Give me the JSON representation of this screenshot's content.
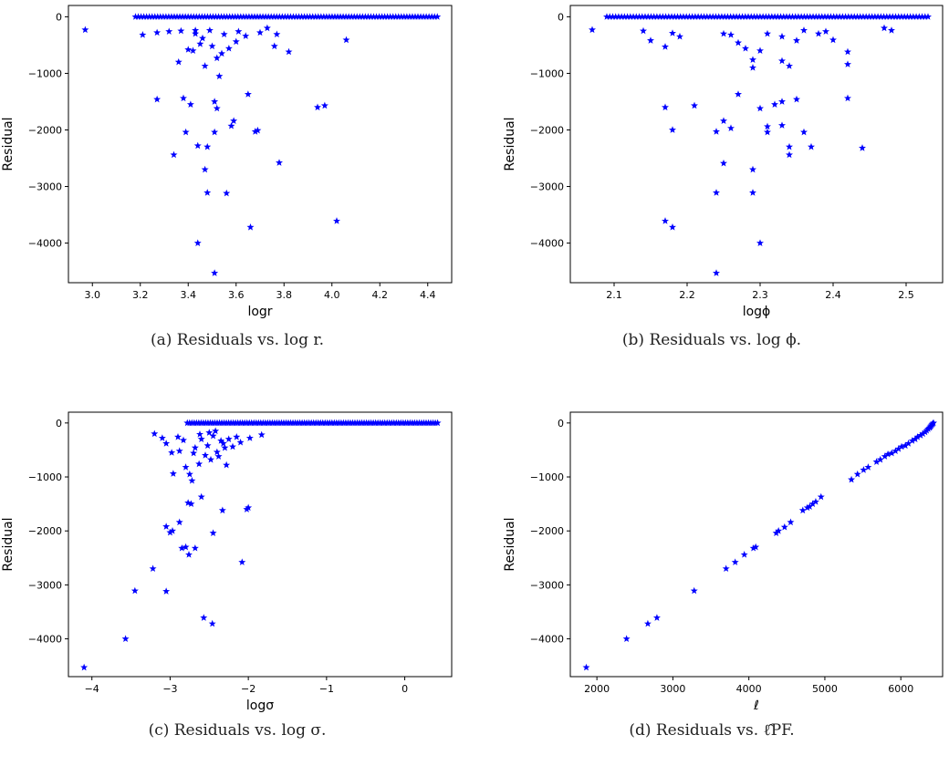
{
  "chart_data": [
    {
      "type": "scatter",
      "xlabel": "logr",
      "ylabel": "Residual",
      "caption": "(a) Residuals vs. log r.",
      "marker": "star",
      "color": "#0000ff",
      "xlim": [
        2.9,
        4.5
      ],
      "ylim": [
        -4700,
        200
      ],
      "xticks": [
        3.0,
        3.2,
        3.4,
        3.6,
        3.8,
        4.0,
        4.2,
        4.4
      ],
      "xtick_labels": [
        "3.0",
        "3.2",
        "3.4",
        "3.6",
        "3.8",
        "4.0",
        "4.2",
        "4.4"
      ],
      "yticks": [
        0,
        -1000,
        -2000,
        -3000,
        -4000
      ],
      "ytick_labels": [
        "0",
        "−1000",
        "−2000",
        "−3000",
        "−4000"
      ],
      "dense_band": {
        "x_start": 3.18,
        "x_end": 4.44,
        "y": 0,
        "count": 110
      },
      "points": [
        [
          2.97,
          -230
        ],
        [
          3.21,
          -320
        ],
        [
          3.27,
          -1460
        ],
        [
          3.27,
          -280
        ],
        [
          3.32,
          -260
        ],
        [
          3.34,
          -2440
        ],
        [
          3.36,
          -800
        ],
        [
          3.37,
          -250
        ],
        [
          3.38,
          -1440
        ],
        [
          3.39,
          -2040
        ],
        [
          3.4,
          -580
        ],
        [
          3.41,
          -1550
        ],
        [
          3.42,
          -600
        ],
        [
          3.43,
          -240
        ],
        [
          3.43,
          -300
        ],
        [
          3.44,
          -2280
        ],
        [
          3.44,
          -4000
        ],
        [
          3.45,
          -480
        ],
        [
          3.46,
          -380
        ],
        [
          3.47,
          -870
        ],
        [
          3.47,
          -2700
        ],
        [
          3.48,
          -2300
        ],
        [
          3.48,
          -3110
        ],
        [
          3.49,
          -240
        ],
        [
          3.5,
          -520
        ],
        [
          3.51,
          -4530
        ],
        [
          3.51,
          -2040
        ],
        [
          3.51,
          -1500
        ],
        [
          3.52,
          -1620
        ],
        [
          3.52,
          -730
        ],
        [
          3.53,
          -1050
        ],
        [
          3.54,
          -650
        ],
        [
          3.55,
          -310
        ],
        [
          3.56,
          -3120
        ],
        [
          3.57,
          -560
        ],
        [
          3.58,
          -1930
        ],
        [
          3.59,
          -1840
        ],
        [
          3.6,
          -440
        ],
        [
          3.61,
          -260
        ],
        [
          3.64,
          -340
        ],
        [
          3.65,
          -1370
        ],
        [
          3.66,
          -3720
        ],
        [
          3.68,
          -2030
        ],
        [
          3.69,
          -2010
        ],
        [
          3.7,
          -280
        ],
        [
          3.73,
          -200
        ],
        [
          3.76,
          -520
        ],
        [
          3.77,
          -310
        ],
        [
          3.78,
          -2580
        ],
        [
          3.82,
          -620
        ],
        [
          3.94,
          -1600
        ],
        [
          3.97,
          -1570
        ],
        [
          4.02,
          -3610
        ],
        [
          4.06,
          -410
        ]
      ]
    },
    {
      "type": "scatter",
      "xlabel": "logϕ",
      "ylabel": "Residual",
      "caption": "(b) Residuals vs. log ϕ.",
      "marker": "star",
      "color": "#0000ff",
      "xlim": [
        2.04,
        2.55
      ],
      "ylim": [
        -4700,
        200
      ],
      "xticks": [
        2.1,
        2.2,
        2.3,
        2.4,
        2.5
      ],
      "xtick_labels": [
        "2.1",
        "2.2",
        "2.3",
        "2.4",
        "2.5"
      ],
      "yticks": [
        0,
        -1000,
        -2000,
        -3000,
        -4000
      ],
      "ytick_labels": [
        "0",
        "−1000",
        "−2000",
        "−3000",
        "−4000"
      ],
      "dense_band": {
        "x_start": 2.09,
        "x_end": 2.53,
        "y": 0,
        "count": 110
      },
      "points": [
        [
          2.07,
          -230
        ],
        [
          2.14,
          -250
        ],
        [
          2.15,
          -420
        ],
        [
          2.17,
          -530
        ],
        [
          2.17,
          -1600
        ],
        [
          2.17,
          -3610
        ],
        [
          2.18,
          -2000
        ],
        [
          2.18,
          -290
        ],
        [
          2.18,
          -3720
        ],
        [
          2.19,
          -350
        ],
        [
          2.21,
          -1570
        ],
        [
          2.24,
          -2030
        ],
        [
          2.24,
          -4530
        ],
        [
          2.25,
          -2590
        ],
        [
          2.24,
          -3110
        ],
        [
          2.25,
          -300
        ],
        [
          2.25,
          -1840
        ],
        [
          2.26,
          -320
        ],
        [
          2.26,
          -1970
        ],
        [
          2.27,
          -1370
        ],
        [
          2.27,
          -460
        ],
        [
          2.28,
          -560
        ],
        [
          2.29,
          -2700
        ],
        [
          2.29,
          -3110
        ],
        [
          2.29,
          -760
        ],
        [
          2.29,
          -900
        ],
        [
          2.3,
          -600
        ],
        [
          2.3,
          -1620
        ],
        [
          2.3,
          -4000
        ],
        [
          2.31,
          -1940
        ],
        [
          2.31,
          -2040
        ],
        [
          2.31,
          -300
        ],
        [
          2.32,
          -1550
        ],
        [
          2.33,
          -350
        ],
        [
          2.33,
          -1500
        ],
        [
          2.33,
          -1920
        ],
        [
          2.33,
          -780
        ],
        [
          2.34,
          -870
        ],
        [
          2.34,
          -2440
        ],
        [
          2.34,
          -2300
        ],
        [
          2.35,
          -420
        ],
        [
          2.35,
          -1460
        ],
        [
          2.36,
          -2040
        ],
        [
          2.36,
          -240
        ],
        [
          2.37,
          -2300
        ],
        [
          2.38,
          -300
        ],
        [
          2.39,
          -260
        ],
        [
          2.4,
          -410
        ],
        [
          2.42,
          -1440
        ],
        [
          2.42,
          -620
        ],
        [
          2.42,
          -840
        ],
        [
          2.44,
          -2320
        ],
        [
          2.47,
          -200
        ],
        [
          2.48,
          -240
        ]
      ]
    },
    {
      "type": "scatter",
      "xlabel": "logσ",
      "ylabel": "Residual",
      "caption": "(c) Residuals vs. log σ.",
      "marker": "star",
      "color": "#0000ff",
      "xlim": [
        -4.3,
        0.6
      ],
      "ylim": [
        -4700,
        200
      ],
      "xticks": [
        -4,
        -3,
        -2,
        -1,
        0
      ],
      "xtick_labels": [
        "−4",
        "−3",
        "−2",
        "−1",
        "0"
      ],
      "yticks": [
        0,
        -1000,
        -2000,
        -3000,
        -4000
      ],
      "ytick_labels": [
        "0",
        "−1000",
        "−2000",
        "−3000",
        "−4000"
      ],
      "dense_band": {
        "x_start": -2.78,
        "x_end": 0.42,
        "y": 0,
        "count": 110
      },
      "points": [
        [
          -4.1,
          -4530
        ],
        [
          -3.57,
          -4000
        ],
        [
          -3.45,
          -3110
        ],
        [
          -3.22,
          -2700
        ],
        [
          -3.05,
          -3120
        ],
        [
          -3.05,
          -1920
        ],
        [
          -3.0,
          -2030
        ],
        [
          -2.97,
          -2000
        ],
        [
          -2.88,
          -1840
        ],
        [
          -2.85,
          -2320
        ],
        [
          -2.8,
          -2300
        ],
        [
          -2.76,
          -2440
        ],
        [
          -2.77,
          -1480
        ],
        [
          -2.73,
          -1500
        ],
        [
          -2.68,
          -2320
        ],
        [
          -2.6,
          -1370
        ],
        [
          -2.57,
          -3610
        ],
        [
          -2.46,
          -3720
        ],
        [
          -2.45,
          -2040
        ],
        [
          -2.33,
          -1620
        ],
        [
          -2.08,
          -2580
        ],
        [
          -2.02,
          -1600
        ],
        [
          -2.0,
          -1570
        ],
        [
          -3.2,
          -200
        ],
        [
          -3.1,
          -280
        ],
        [
          -3.05,
          -380
        ],
        [
          -2.98,
          -550
        ],
        [
          -2.96,
          -940
        ],
        [
          -2.9,
          -260
        ],
        [
          -2.88,
          -520
        ],
        [
          -2.83,
          -320
        ],
        [
          -2.8,
          -820
        ],
        [
          -2.75,
          -950
        ],
        [
          -2.72,
          -1070
        ],
        [
          -2.7,
          -560
        ],
        [
          -2.68,
          -460
        ],
        [
          -2.63,
          -760
        ],
        [
          -2.6,
          -300
        ],
        [
          -2.55,
          -600
        ],
        [
          -2.52,
          -420
        ],
        [
          -2.48,
          -680
        ],
        [
          -2.45,
          -240
        ],
        [
          -2.4,
          -540
        ],
        [
          -2.38,
          -620
        ],
        [
          -2.35,
          -330
        ],
        [
          -2.32,
          -380
        ],
        [
          -2.3,
          -460
        ],
        [
          -2.28,
          -780
        ],
        [
          -2.25,
          -300
        ],
        [
          -2.2,
          -440
        ],
        [
          -2.15,
          -260
        ],
        [
          -2.1,
          -360
        ],
        [
          -1.98,
          -280
        ],
        [
          -1.83,
          -220
        ],
        [
          -2.62,
          -210
        ],
        [
          -2.5,
          -180
        ],
        [
          -2.42,
          -150
        ]
      ]
    },
    {
      "type": "scatter",
      "xlabel": "ℓ",
      "ylabel": "Residual",
      "caption": "(d) Residuals vs. ℓ̂PF.",
      "marker": "star",
      "color": "#0000ff",
      "xlim": [
        1650,
        6550
      ],
      "ylim": [
        -4700,
        200
      ],
      "xticks": [
        2000,
        3000,
        4000,
        5000,
        6000
      ],
      "xtick_labels": [
        "2000",
        "3000",
        "4000",
        "5000",
        "6000"
      ],
      "yticks": [
        0,
        -1000,
        -2000,
        -3000,
        -4000
      ],
      "ytick_labels": [
        "0",
        "−1000",
        "−2000",
        "−3000",
        "−4000"
      ],
      "points": [
        [
          1860,
          -4530
        ],
        [
          2390,
          -4000
        ],
        [
          2670,
          -3720
        ],
        [
          2790,
          -3610
        ],
        [
          3280,
          -3110
        ],
        [
          3700,
          -2700
        ],
        [
          3820,
          -2580
        ],
        [
          3940,
          -2440
        ],
        [
          4060,
          -2320
        ],
        [
          4090,
          -2300
        ],
        [
          4360,
          -2040
        ],
        [
          4390,
          -2000
        ],
        [
          4470,
          -1930
        ],
        [
          4550,
          -1840
        ],
        [
          4710,
          -1620
        ],
        [
          4770,
          -1570
        ],
        [
          4800,
          -1550
        ],
        [
          4840,
          -1500
        ],
        [
          4880,
          -1460
        ],
        [
          4950,
          -1370
        ],
        [
          5350,
          -1050
        ],
        [
          5430,
          -950
        ],
        [
          5510,
          -870
        ],
        [
          5570,
          -820
        ],
        [
          5680,
          -720
        ],
        [
          5730,
          -680
        ],
        [
          5790,
          -620
        ],
        [
          5830,
          -580
        ],
        [
          5880,
          -560
        ],
        [
          5930,
          -520
        ],
        [
          5970,
          -480
        ],
        [
          6010,
          -440
        ],
        [
          6060,
          -420
        ],
        [
          6100,
          -380
        ],
        [
          6150,
          -330
        ],
        [
          6190,
          -300
        ],
        [
          6220,
          -260
        ],
        [
          6260,
          -230
        ],
        [
          6290,
          -200
        ],
        [
          6320,
          -170
        ],
        [
          6340,
          -140
        ],
        [
          6360,
          -110
        ],
        [
          6380,
          -90
        ],
        [
          6390,
          -70
        ],
        [
          6400,
          -50
        ],
        [
          6410,
          -30
        ],
        [
          6420,
          -15
        ],
        [
          6430,
          0
        ]
      ]
    }
  ]
}
